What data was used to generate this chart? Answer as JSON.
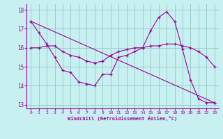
{
  "xlabel": "Windchill (Refroidissement éolien,°C)",
  "bg_color": "#c8f0f0",
  "line_color": "#990099",
  "grid_color": "#99cccc",
  "xlim": [
    -0.5,
    23.5
  ],
  "ylim": [
    12.8,
    18.3
  ],
  "yticks": [
    13,
    14,
    15,
    16,
    17,
    18
  ],
  "xticks": [
    0,
    1,
    2,
    3,
    4,
    5,
    6,
    7,
    8,
    9,
    10,
    11,
    12,
    13,
    14,
    15,
    16,
    17,
    18,
    19,
    20,
    21,
    22,
    23
  ],
  "line1_x": [
    0,
    1,
    2,
    3,
    4,
    5,
    6,
    7,
    8,
    9,
    10,
    11,
    12,
    13,
    14,
    15,
    16,
    17,
    18,
    19,
    20,
    21,
    22,
    23
  ],
  "line1_y": [
    17.4,
    16.8,
    16.2,
    15.5,
    14.8,
    14.7,
    14.2,
    14.1,
    14.0,
    14.6,
    14.6,
    15.5,
    15.6,
    15.8,
    16.0,
    16.9,
    17.6,
    17.9,
    17.4,
    15.9,
    14.3,
    13.3,
    13.1,
    13.1
  ],
  "line2_x": [
    0,
    1,
    2,
    3,
    4,
    5,
    6,
    7,
    8,
    9,
    10,
    11,
    12,
    13,
    14,
    15,
    16,
    17,
    18,
    19,
    20,
    21,
    22,
    23
  ],
  "line2_y": [
    16.0,
    16.0,
    16.1,
    16.1,
    15.8,
    15.6,
    15.5,
    15.3,
    15.2,
    15.3,
    15.6,
    15.8,
    15.9,
    16.0,
    16.0,
    16.1,
    16.1,
    16.2,
    16.2,
    16.1,
    16.0,
    15.8,
    15.5,
    15.0
  ],
  "line3_x": [
    0,
    23
  ],
  "line3_y": [
    17.4,
    13.1
  ]
}
